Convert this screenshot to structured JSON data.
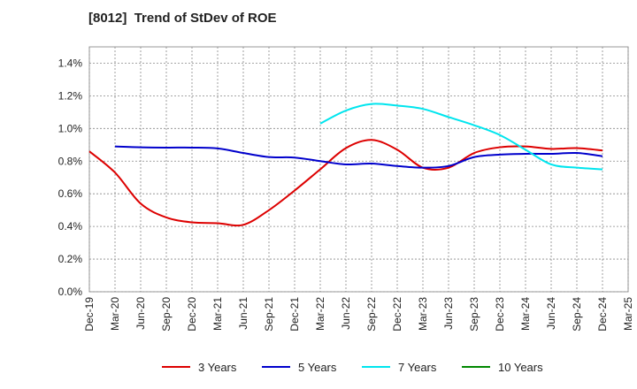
{
  "chart_data": {
    "type": "line",
    "title": "[8012]  Trend of StDev of ROE",
    "xlabel": "",
    "ylabel": "",
    "ylim": [
      0,
      1.5
    ],
    "yticks": [
      0,
      0.2,
      0.4,
      0.6,
      0.8,
      1.0,
      1.2,
      1.4
    ],
    "ytick_labels": [
      "0.0%",
      "0.2%",
      "0.4%",
      "0.6%",
      "0.8%",
      "1.0%",
      "1.2%",
      "1.4%"
    ],
    "x_categories": [
      "Dec-19",
      "Mar-20",
      "Jun-20",
      "Sep-20",
      "Dec-20",
      "Mar-21",
      "Jun-21",
      "Sep-21",
      "Dec-21",
      "Mar-22",
      "Jun-22",
      "Sep-22",
      "Dec-22",
      "Mar-23",
      "Jun-23",
      "Sep-23",
      "Dec-23",
      "Mar-24",
      "Jun-24",
      "Sep-24",
      "Dec-24",
      "Mar-25"
    ],
    "grid": true,
    "legend_position": "bottom",
    "series": [
      {
        "name": "3 Years",
        "color": "#dd0000",
        "values": [
          0.86,
          0.73,
          0.54,
          0.455,
          0.425,
          0.42,
          0.41,
          0.5,
          0.62,
          0.75,
          0.88,
          0.93,
          0.87,
          0.76,
          0.76,
          0.85,
          0.885,
          0.89,
          0.875,
          0.88,
          0.865,
          null
        ]
      },
      {
        "name": "5 Years",
        "color": "#0000cc",
        "values": [
          null,
          0.89,
          0.885,
          0.883,
          0.883,
          0.878,
          0.85,
          0.825,
          0.822,
          0.8,
          0.78,
          0.785,
          0.77,
          0.76,
          0.77,
          0.825,
          0.84,
          0.845,
          0.845,
          0.85,
          0.83,
          null
        ]
      },
      {
        "name": "7 Years",
        "color": "#00e5ee",
        "values": [
          null,
          null,
          null,
          null,
          null,
          null,
          null,
          null,
          null,
          1.03,
          1.11,
          1.15,
          1.14,
          1.12,
          1.07,
          1.02,
          0.96,
          0.87,
          0.78,
          0.76,
          0.75,
          null
        ]
      },
      {
        "name": "10 Years",
        "color": "#008800",
        "values": [
          null,
          null,
          null,
          null,
          null,
          null,
          null,
          null,
          null,
          null,
          null,
          null,
          null,
          null,
          null,
          null,
          null,
          null,
          null,
          null,
          null,
          null
        ]
      }
    ]
  }
}
